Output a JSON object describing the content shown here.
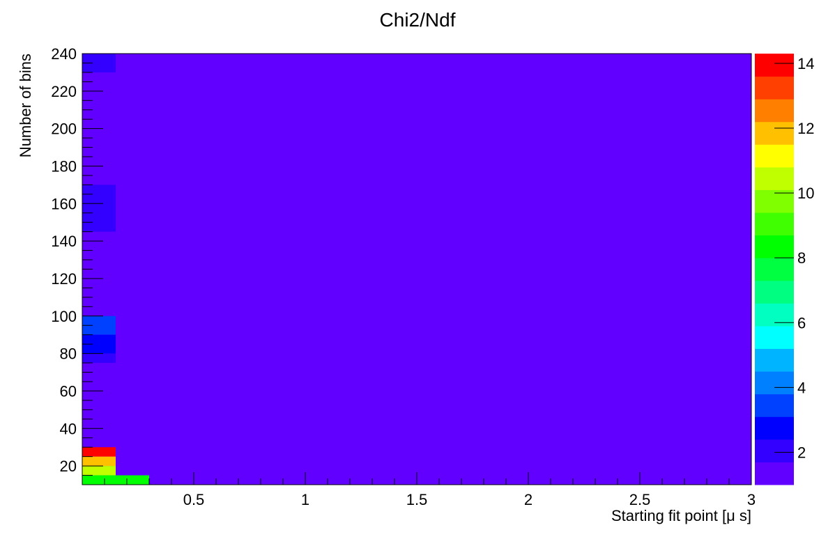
{
  "chart_data": {
    "type": "heatmap",
    "title": "Chi2/Ndf",
    "xlabel": "Starting fit point [μ s]",
    "ylabel": "Number of bins",
    "xlim": [
      0,
      3
    ],
    "ylim": [
      10,
      240
    ],
    "x_ticks": [
      "0.5",
      "1",
      "1.5",
      "2",
      "2.5",
      "3"
    ],
    "x_tick_values": [
      0.5,
      1,
      1.5,
      2,
      2.5,
      3
    ],
    "y_ticks": [
      "20",
      "40",
      "60",
      "80",
      "100",
      "120",
      "140",
      "160",
      "180",
      "200",
      "220",
      "240"
    ],
    "y_tick_values": [
      20,
      40,
      60,
      80,
      100,
      120,
      140,
      160,
      180,
      200,
      220,
      240
    ],
    "z_ticks": [
      "2",
      "4",
      "6",
      "8",
      "10",
      "12",
      "14"
    ],
    "z_tick_values": [
      2,
      4,
      6,
      8,
      10,
      12,
      14
    ],
    "zlim": [
      1,
      14.3
    ],
    "background_value": 1.2,
    "cells": [
      {
        "x0": 0,
        "x1": 0.15,
        "y0": 230,
        "y1": 240,
        "value": 1.7
      },
      {
        "x0": 0,
        "x1": 0.15,
        "y0": 145,
        "y1": 170,
        "value": 1.7
      },
      {
        "x0": 0,
        "x1": 0.15,
        "y0": 90,
        "y1": 100,
        "value": 3.1
      },
      {
        "x0": 0,
        "x1": 0.15,
        "y0": 80,
        "y1": 90,
        "value": 2.6
      },
      {
        "x0": 0,
        "x1": 0.15,
        "y0": 75,
        "y1": 80,
        "value": 1.9
      },
      {
        "x0": 0,
        "x1": 0.15,
        "y0": 25,
        "y1": 30,
        "value": 14.0
      },
      {
        "x0": 0,
        "x1": 0.15,
        "y0": 20,
        "y1": 25,
        "value": 11.7
      },
      {
        "x0": 0,
        "x1": 0.15,
        "y0": 15,
        "y1": 20,
        "value": 10.6
      },
      {
        "x0": 0,
        "x1": 0.3,
        "y0": 10,
        "y1": 15,
        "value": 8.5
      }
    ],
    "palette": [
      "#6100ff",
      "#3300ff",
      "#0000ff",
      "#0040ff",
      "#0080ff",
      "#00b4ff",
      "#00ffff",
      "#00ffc0",
      "#00ff80",
      "#00ff40",
      "#00ff00",
      "#40ff00",
      "#80ff00",
      "#c0ff00",
      "#ffff00",
      "#ffc000",
      "#ff8000",
      "#ff4000",
      "#ff0000"
    ],
    "grid": false,
    "legend": "right"
  }
}
